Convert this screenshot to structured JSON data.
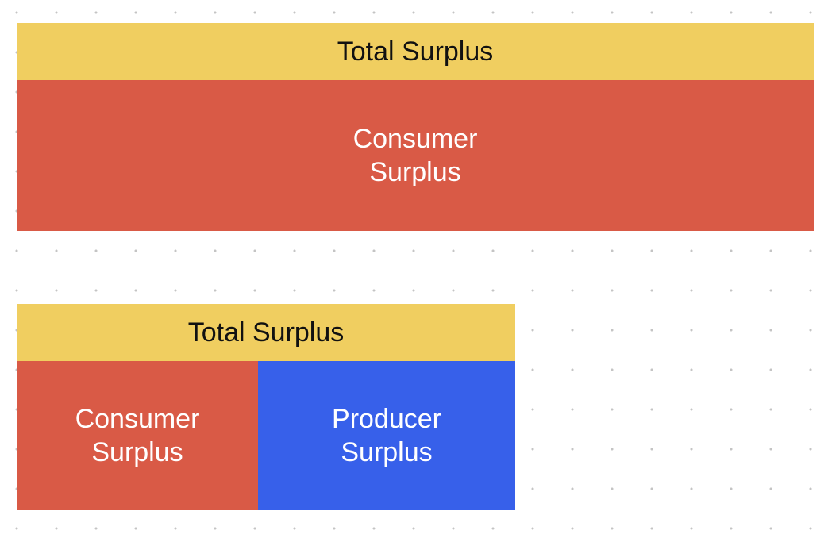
{
  "colors": {
    "total_surplus": "#F0CE60",
    "consumer_surplus": "#D95A46",
    "producer_surplus": "#3760EA",
    "dot_grid": "#C4C4C4",
    "background": "#FFFFFF"
  },
  "diagrams": {
    "top": {
      "header": "Total Surplus",
      "consumer": "Consumer\nSurplus"
    },
    "bottom": {
      "header": "Total Surplus",
      "consumer": "Consumer\nSurplus",
      "producer": "Producer\nSurplus"
    }
  }
}
